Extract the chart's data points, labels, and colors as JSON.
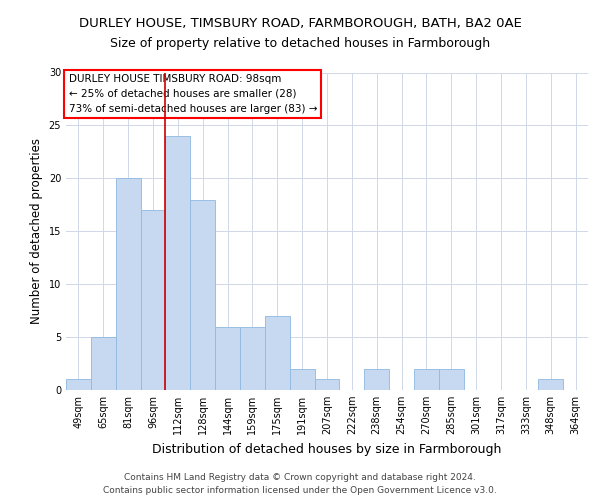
{
  "title": "DURLEY HOUSE, TIMSBURY ROAD, FARMBOROUGH, BATH, BA2 0AE",
  "subtitle": "Size of property relative to detached houses in Farmborough",
  "xlabel": "Distribution of detached houses by size in Farmborough",
  "ylabel": "Number of detached properties",
  "categories": [
    "49sqm",
    "65sqm",
    "81sqm",
    "96sqm",
    "112sqm",
    "128sqm",
    "144sqm",
    "159sqm",
    "175sqm",
    "191sqm",
    "207sqm",
    "222sqm",
    "238sqm",
    "254sqm",
    "270sqm",
    "285sqm",
    "301sqm",
    "317sqm",
    "333sqm",
    "348sqm",
    "364sqm"
  ],
  "values": [
    1,
    5,
    20,
    17,
    24,
    18,
    6,
    6,
    7,
    2,
    1,
    0,
    2,
    0,
    2,
    2,
    0,
    0,
    0,
    1,
    0
  ],
  "bar_color": "#c6d9f1",
  "bar_edge_color": "#8fb8e0",
  "vline_x_index": 3.5,
  "vline_color": "#cc0000",
  "annotation_box_text": "DURLEY HOUSE TIMSBURY ROAD: 98sqm\n← 25% of detached houses are smaller (28)\n73% of semi-detached houses are larger (83) →",
  "ylim": [
    0,
    30
  ],
  "yticks": [
    0,
    5,
    10,
    15,
    20,
    25,
    30
  ],
  "footer_line1": "Contains HM Land Registry data © Crown copyright and database right 2024.",
  "footer_line2": "Contains public sector information licensed under the Open Government Licence v3.0.",
  "title_fontsize": 9.5,
  "subtitle_fontsize": 9,
  "xlabel_fontsize": 9,
  "ylabel_fontsize": 8.5,
  "tick_fontsize": 7,
  "annotation_fontsize": 7.5,
  "footer_fontsize": 6.5,
  "background_color": "#ffffff",
  "grid_color": "#d0d8e8"
}
